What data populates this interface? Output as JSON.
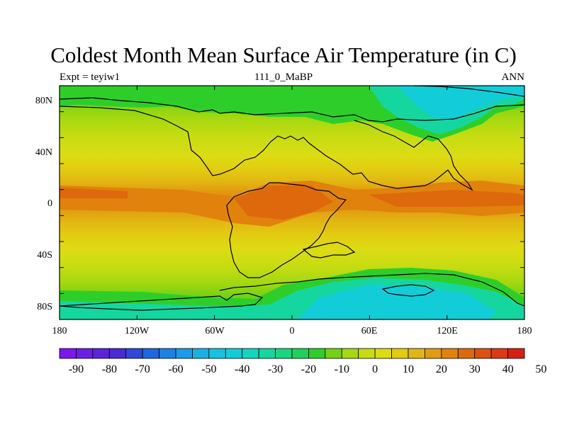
{
  "header": {
    "title": "Coldest Month Mean Surface Air Temperature (in C)",
    "left": "Expt = teyiw1",
    "center": "111_0_MaBP",
    "right": "ANN"
  },
  "map": {
    "lon_ticks": [
      "180",
      "120W",
      "60W",
      "0",
      "60E",
      "120E",
      "180"
    ],
    "lat_ticks": [
      "80N",
      "40N",
      "0",
      "40S",
      "80S"
    ],
    "lat_range": [
      -90,
      90
    ],
    "lon_range": [
      -180,
      180
    ]
  },
  "colorbar": {
    "labels": [
      "-90",
      "-80",
      "-70",
      "-60",
      "-50",
      "-40",
      "-30",
      "-20",
      "-10",
      "0",
      "10",
      "20",
      "30",
      "40",
      "50"
    ],
    "colors": [
      "#7d17f0",
      "#6a1ee6",
      "#5a22dc",
      "#4a2ad2",
      "#2f48d8",
      "#1f66e0",
      "#1c82e4",
      "#1c9ae6",
      "#16b2e2",
      "#16c2e0",
      "#12cdd8",
      "#14d6c0",
      "#16d6a0",
      "#18d680",
      "#1dd258",
      "#2ece2a",
      "#74d214",
      "#a6d810",
      "#c8dc12",
      "#dcdc14",
      "#e2cc10",
      "#e2b612",
      "#e29c10",
      "#e0820c",
      "#de680c",
      "#dc5010",
      "#da3a14",
      "#d82010"
    ]
  }
}
